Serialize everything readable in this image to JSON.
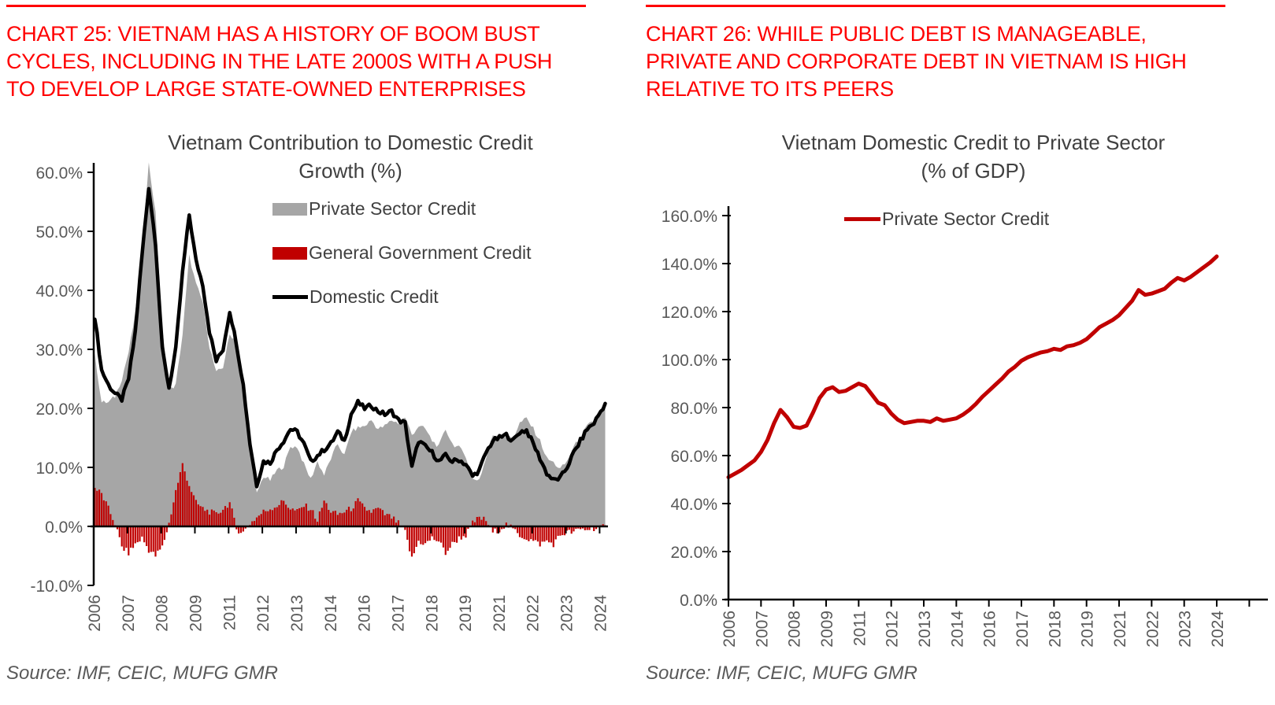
{
  "colors": {
    "header_red": "#ff0000",
    "series_red": "#c00000",
    "series_gray": "#a6a6a6",
    "series_black": "#000000",
    "axis_text": "#595959",
    "title_text": "#404040"
  },
  "left_panel": {
    "header": "CHART 25: VIETNAM HAS A HISTORY OF BOOM BUST\nCYCLES, INCLUDING IN THE LATE 2000S WITH A PUSH\nTO DEVELOP LARGE STATE-OWNED ENTERPRISES",
    "source": "Source: IMF, CEIC, MUFG GMR"
  },
  "right_panel": {
    "header": "CHART 26: WHILE PUBLIC DEBT IS MANAGEABLE,\nPRIVATE AND CORPORATE DEBT IN VIETNAM IS HIGH\nRELATIVE TO ITS PEERS",
    "source": "Source: IMF, CEIC, MUFG GMR"
  },
  "chart_data": [
    {
      "type": "combo",
      "title_line1": "Vietnam Contribution to Domestic Credit",
      "title_line2": "Growth (%)",
      "x_start": 2006.0,
      "x_step": 0.25,
      "x_resolution": "quarterly estimates read from monthly plot",
      "x_tick_labels": [
        "2006",
        "2007",
        "2008",
        "2009",
        "2011",
        "2012",
        "2013",
        "2014",
        "2016",
        "2017",
        "2018",
        "2019",
        "2021",
        "2022",
        "2023",
        "2024"
      ],
      "y_tick_labels": [
        "60.0%",
        "50.0%",
        "40.0%",
        "30.0%",
        "20.0%",
        "10.0%",
        "0.0%",
        "-10.0%"
      ],
      "y_tick_values": [
        60,
        50,
        40,
        30,
        20,
        10,
        0,
        -10
      ],
      "ylim": [
        -10,
        60
      ],
      "xlim": [
        2006,
        2025
      ],
      "grid": false,
      "legend_position": "inside top right",
      "series": [
        {
          "name": "Private Sector Credit",
          "type": "area",
          "color": "#a6a6a6",
          "values": [
            29.0,
            21.0,
            21.0,
            22.0,
            25.0,
            29.5,
            36.0,
            48.0,
            61.5,
            53.0,
            33.5,
            23.0,
            24.0,
            32.5,
            45.8,
            41.0,
            38.0,
            30.5,
            26.0,
            27.0,
            32.5,
            31.5,
            25.0,
            13.5,
            5.5,
            8.5,
            7.8,
            9.5,
            10.2,
            13.5,
            13.5,
            10.5,
            8.0,
            11.0,
            8.7,
            11.5,
            14.0,
            12.0,
            16.0,
            16.7,
            17.0,
            18.0,
            16.5,
            17.0,
            18.0,
            17.5,
            18.5,
            15.5,
            17.0,
            16.5,
            14.5,
            13.5,
            16.5,
            14.0,
            13.3,
            12.0,
            8.0,
            8.0,
            11.5,
            15.5,
            15.5,
            15.2,
            15.0,
            17.5,
            18.3,
            16.5,
            14.5,
            11.5,
            10.8,
            9.7,
            11.0,
            13.5,
            15.0,
            17.0,
            17.8,
            19.7
          ]
        },
        {
          "name": "General Government Credit",
          "type": "bar",
          "color": "#c00000",
          "values": [
            6.5,
            5.5,
            3.0,
            0.5,
            -3.5,
            -4.5,
            -3.0,
            -2.0,
            -4.0,
            -5.0,
            -3.5,
            0.5,
            6.0,
            10.5,
            7.0,
            4.0,
            3.0,
            2.5,
            2.0,
            3.0,
            4.0,
            -0.5,
            -1.0,
            0.5,
            1.5,
            2.5,
            3.0,
            3.5,
            4.3,
            3.0,
            2.5,
            3.5,
            3.0,
            1.0,
            4.3,
            2.5,
            2.0,
            2.5,
            3.0,
            4.3,
            3.0,
            2.5,
            3.0,
            2.0,
            1.5,
            0.5,
            -1.0,
            -5.5,
            -2.5,
            -3.0,
            -2.0,
            -2.5,
            -4.5,
            -3.0,
            -2.0,
            -1.5,
            0.5,
            1.5,
            1.0,
            -1.0,
            -0.5,
            0.3,
            -0.5,
            -1.5,
            -2.0,
            -2.5,
            -3.0,
            -2.5,
            -3.0,
            -1.5,
            -1.0,
            -1.0,
            -0.5,
            -0.5,
            -0.3,
            -0.2
          ]
        },
        {
          "name": "Domestic Credit",
          "type": "line",
          "color": "#000000",
          "values": [
            35.5,
            26.5,
            24.0,
            22.5,
            21.5,
            25.0,
            33.0,
            46.0,
            57.5,
            48.0,
            30.0,
            23.5,
            30.0,
            43.0,
            52.8,
            45.0,
            41.0,
            33.0,
            28.0,
            30.0,
            36.5,
            31.0,
            24.0,
            14.0,
            7.0,
            11.0,
            10.8,
            13.0,
            14.5,
            16.5,
            16.0,
            14.0,
            11.0,
            12.0,
            13.0,
            14.0,
            16.0,
            14.5,
            19.0,
            21.0,
            20.0,
            20.5,
            19.5,
            19.0,
            19.5,
            18.0,
            17.5,
            10.0,
            14.5,
            13.5,
            12.5,
            11.0,
            12.0,
            11.0,
            11.3,
            10.5,
            8.5,
            9.5,
            12.5,
            14.5,
            15.0,
            15.5,
            14.5,
            16.0,
            16.3,
            14.0,
            11.5,
            9.0,
            7.8,
            8.2,
            10.0,
            12.5,
            14.5,
            16.5,
            17.5,
            19.5
          ]
        }
      ]
    },
    {
      "type": "line",
      "title_line1": "Vietnam Domestic Credit to Private Sector",
      "title_line2": "(% of GDP)",
      "x_start": 2006.0,
      "x_step": 0.25,
      "x_tick_labels": [
        "2006",
        "2007",
        "2008",
        "2009",
        "2011",
        "2012",
        "2013",
        "2014",
        "2016",
        "2017",
        "2018",
        "2019",
        "2021",
        "2022",
        "2023",
        "2024"
      ],
      "y_tick_labels": [
        "160.0%",
        "140.0%",
        "120.0%",
        "100.0%",
        "80.0%",
        "60.0%",
        "40.0%",
        "20.0%",
        "0.0%"
      ],
      "y_tick_values": [
        160,
        140,
        120,
        100,
        80,
        60,
        40,
        20,
        0
      ],
      "ylim": [
        0,
        160
      ],
      "xlim": [
        2006,
        2025
      ],
      "grid": false,
      "legend_position": "inside top center",
      "series": [
        {
          "name": "Private Sector Credit",
          "type": "line",
          "color": "#c00000",
          "values": [
            51.0,
            52.5,
            54.0,
            56.0,
            58.0,
            61.5,
            66.5,
            73.5,
            79.0,
            76.0,
            72.0,
            71.5,
            72.5,
            78.0,
            84.0,
            87.5,
            88.5,
            86.5,
            87.0,
            88.5,
            90.0,
            89.0,
            85.5,
            82.0,
            81.0,
            77.5,
            75.0,
            73.5,
            74.0,
            74.5,
            74.5,
            74.0,
            75.5,
            74.5,
            75.0,
            75.5,
            77.0,
            79.0,
            81.5,
            84.5,
            87.0,
            89.5,
            92.0,
            95.0,
            97.0,
            99.5,
            101.0,
            102.0,
            103.0,
            103.5,
            104.5,
            104.0,
            105.5,
            106.0,
            107.0,
            108.5,
            111.0,
            113.5,
            115.0,
            116.5,
            118.5,
            121.5,
            124.5,
            129.0,
            127.0,
            127.5,
            128.5,
            129.5,
            132.0,
            134.0,
            133.0,
            134.5,
            136.5,
            138.5,
            140.5,
            143.0
          ]
        }
      ]
    }
  ]
}
